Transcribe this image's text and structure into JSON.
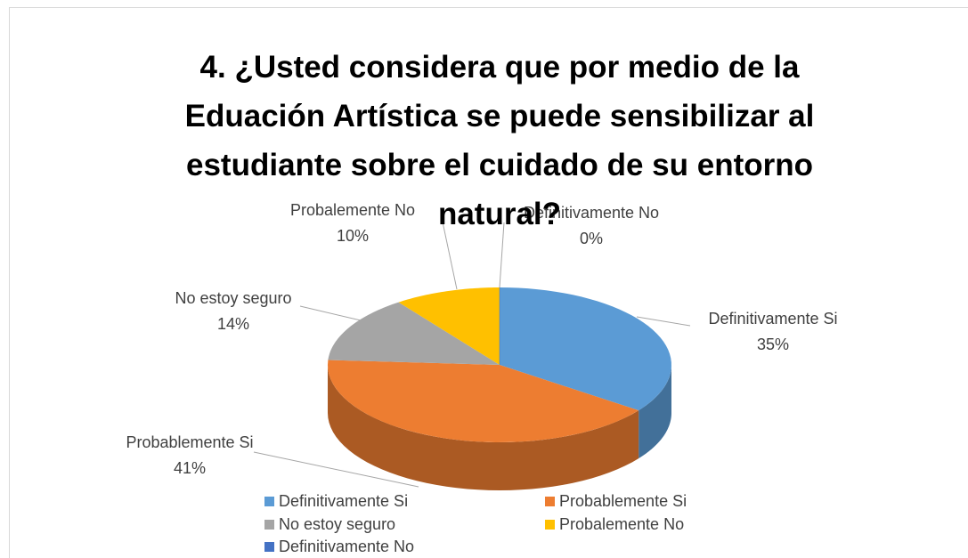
{
  "chart_data": {
    "type": "pie",
    "title": "4. ¿Usted considera que por medio de la Eduación Artística se puede sensibilizar al estudiante sobre el cuidado de su entorno natural?",
    "categories": [
      "Definitivamente Si",
      "Probablemente Si",
      "No estoy seguro",
      "Probalemente No",
      "Definitivamente No"
    ],
    "values": [
      35,
      41,
      14,
      10,
      0
    ],
    "value_labels": [
      "35%",
      "41%",
      "14%",
      "10%",
      "0%"
    ],
    "colors": [
      "#5b9bd5",
      "#ed7d31",
      "#a5a5a5",
      "#ffc000",
      "#4472c4"
    ],
    "legend": "bottom"
  }
}
